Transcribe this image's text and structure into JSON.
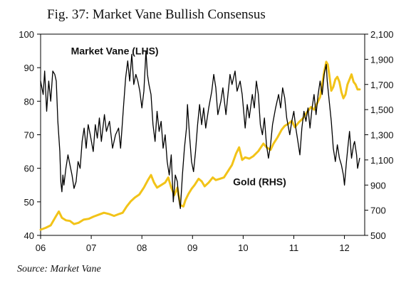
{
  "figure": {
    "title": "Fig. 37: Market Vane Bullish Consensus",
    "source": "Source: Market Vane"
  },
  "chart_data": {
    "type": "line",
    "x_tick_labels": [
      "06",
      "07",
      "08",
      "09",
      "10",
      "11",
      "12"
    ],
    "x_tick_values": [
      2006,
      2007,
      2008,
      2009,
      2010,
      2011,
      2012
    ],
    "xlim": [
      2006,
      2012.4
    ],
    "y_left": {
      "lim": [
        40,
        100
      ],
      "ticks": [
        40,
        50,
        60,
        70,
        80,
        90,
        100
      ]
    },
    "y_right": {
      "lim": [
        500,
        2100
      ],
      "ticks": [
        500,
        700,
        900,
        1100,
        1300,
        1500,
        1700,
        1900,
        2100
      ],
      "tick_labels": [
        "500",
        "700",
        "900",
        "1,100",
        "1,300",
        "1,500",
        "1,700",
        "1,900",
        "2,100"
      ]
    },
    "grid": false,
    "series": [
      {
        "name": "Market Vane (LHS)",
        "axis": "left",
        "color": "#000000",
        "points": [
          [
            2006.0,
            86
          ],
          [
            2006.05,
            82
          ],
          [
            2006.08,
            89
          ],
          [
            2006.12,
            77
          ],
          [
            2006.16,
            86
          ],
          [
            2006.2,
            80
          ],
          [
            2006.24,
            89
          ],
          [
            2006.28,
            88
          ],
          [
            2006.31,
            86
          ],
          [
            2006.34,
            74
          ],
          [
            2006.38,
            65
          ],
          [
            2006.4,
            56
          ],
          [
            2006.42,
            53
          ],
          [
            2006.44,
            58
          ],
          [
            2006.46,
            55
          ],
          [
            2006.5,
            60
          ],
          [
            2006.54,
            64
          ],
          [
            2006.58,
            61
          ],
          [
            2006.62,
            58
          ],
          [
            2006.66,
            54
          ],
          [
            2006.7,
            56
          ],
          [
            2006.74,
            62
          ],
          [
            2006.78,
            60
          ],
          [
            2006.82,
            68
          ],
          [
            2006.86,
            72
          ],
          [
            2006.9,
            66
          ],
          [
            2006.94,
            73
          ],
          [
            2006.98,
            70
          ],
          [
            2007.04,
            65
          ],
          [
            2007.08,
            73
          ],
          [
            2007.12,
            69
          ],
          [
            2007.16,
            75
          ],
          [
            2007.2,
            68
          ],
          [
            2007.26,
            76
          ],
          [
            2007.3,
            71
          ],
          [
            2007.36,
            74
          ],
          [
            2007.42,
            66
          ],
          [
            2007.48,
            70
          ],
          [
            2007.54,
            72
          ],
          [
            2007.58,
            66
          ],
          [
            2007.64,
            79
          ],
          [
            2007.68,
            87
          ],
          [
            2007.72,
            92
          ],
          [
            2007.76,
            86
          ],
          [
            2007.8,
            94
          ],
          [
            2007.84,
            85
          ],
          [
            2007.88,
            88
          ],
          [
            2007.92,
            86
          ],
          [
            2007.96,
            83
          ],
          [
            2008.0,
            78
          ],
          [
            2008.04,
            83
          ],
          [
            2008.08,
            95
          ],
          [
            2008.11,
            88
          ],
          [
            2008.14,
            85
          ],
          [
            2008.18,
            82
          ],
          [
            2008.22,
            73
          ],
          [
            2008.26,
            68
          ],
          [
            2008.3,
            77
          ],
          [
            2008.34,
            71
          ],
          [
            2008.38,
            74
          ],
          [
            2008.42,
            66
          ],
          [
            2008.46,
            70
          ],
          [
            2008.5,
            62
          ],
          [
            2008.54,
            58
          ],
          [
            2008.58,
            64
          ],
          [
            2008.62,
            50
          ],
          [
            2008.66,
            58
          ],
          [
            2008.7,
            56
          ],
          [
            2008.72,
            52
          ],
          [
            2008.76,
            48
          ],
          [
            2008.8,
            58
          ],
          [
            2008.84,
            66
          ],
          [
            2008.88,
            72
          ],
          [
            2008.9,
            79
          ],
          [
            2008.94,
            70
          ],
          [
            2008.98,
            62
          ],
          [
            2009.02,
            59
          ],
          [
            2009.06,
            65
          ],
          [
            2009.1,
            73
          ],
          [
            2009.14,
            79
          ],
          [
            2009.18,
            73
          ],
          [
            2009.22,
            78
          ],
          [
            2009.26,
            72
          ],
          [
            2009.32,
            78
          ],
          [
            2009.38,
            83
          ],
          [
            2009.42,
            88
          ],
          [
            2009.46,
            84
          ],
          [
            2009.5,
            76
          ],
          [
            2009.56,
            80
          ],
          [
            2009.6,
            84
          ],
          [
            2009.66,
            76
          ],
          [
            2009.7,
            82
          ],
          [
            2009.74,
            88
          ],
          [
            2009.78,
            85
          ],
          [
            2009.84,
            89
          ],
          [
            2009.88,
            83
          ],
          [
            2009.94,
            86
          ],
          [
            2009.98,
            82
          ],
          [
            2010.04,
            72
          ],
          [
            2010.08,
            79
          ],
          [
            2010.12,
            75
          ],
          [
            2010.18,
            82
          ],
          [
            2010.22,
            78
          ],
          [
            2010.26,
            86
          ],
          [
            2010.3,
            82
          ],
          [
            2010.34,
            73
          ],
          [
            2010.38,
            70
          ],
          [
            2010.42,
            75
          ],
          [
            2010.46,
            67
          ],
          [
            2010.5,
            63
          ],
          [
            2010.54,
            67
          ],
          [
            2010.58,
            73
          ],
          [
            2010.64,
            78
          ],
          [
            2010.7,
            82
          ],
          [
            2010.74,
            78
          ],
          [
            2010.78,
            84
          ],
          [
            2010.82,
            81
          ],
          [
            2010.86,
            75
          ],
          [
            2010.92,
            70
          ],
          [
            2010.96,
            74
          ],
          [
            2011.0,
            77
          ],
          [
            2011.04,
            72
          ],
          [
            2011.08,
            68
          ],
          [
            2011.12,
            64
          ],
          [
            2011.16,
            72
          ],
          [
            2011.2,
            77
          ],
          [
            2011.24,
            74
          ],
          [
            2011.28,
            78
          ],
          [
            2011.32,
            72
          ],
          [
            2011.36,
            78
          ],
          [
            2011.4,
            82
          ],
          [
            2011.44,
            76
          ],
          [
            2011.48,
            82
          ],
          [
            2011.52,
            86
          ],
          [
            2011.56,
            82
          ],
          [
            2011.6,
            88
          ],
          [
            2011.64,
            91
          ],
          [
            2011.66,
            86
          ],
          [
            2011.7,
            80
          ],
          [
            2011.74,
            74
          ],
          [
            2011.78,
            66
          ],
          [
            2011.82,
            62
          ],
          [
            2011.86,
            67
          ],
          [
            2011.9,
            63
          ],
          [
            2011.94,
            61
          ],
          [
            2011.98,
            58
          ],
          [
            2012.0,
            55
          ],
          [
            2012.04,
            62
          ],
          [
            2012.08,
            68
          ],
          [
            2012.1,
            71
          ],
          [
            2012.14,
            63
          ],
          [
            2012.18,
            67
          ],
          [
            2012.2,
            68
          ],
          [
            2012.24,
            64
          ],
          [
            2012.26,
            60
          ],
          [
            2012.3,
            63
          ]
        ]
      },
      {
        "name": "Gold (RHS)",
        "axis": "right",
        "color": "#f2c318",
        "points": [
          [
            2006.0,
            545
          ],
          [
            2006.1,
            560
          ],
          [
            2006.2,
            580
          ],
          [
            2006.3,
            650
          ],
          [
            2006.36,
            690
          ],
          [
            2006.42,
            640
          ],
          [
            2006.5,
            620
          ],
          [
            2006.58,
            615
          ],
          [
            2006.66,
            590
          ],
          [
            2006.75,
            600
          ],
          [
            2006.85,
            625
          ],
          [
            2006.95,
            632
          ],
          [
            2007.05,
            650
          ],
          [
            2007.15,
            665
          ],
          [
            2007.25,
            680
          ],
          [
            2007.35,
            670
          ],
          [
            2007.45,
            655
          ],
          [
            2007.55,
            670
          ],
          [
            2007.62,
            680
          ],
          [
            2007.7,
            730
          ],
          [
            2007.78,
            770
          ],
          [
            2007.86,
            800
          ],
          [
            2007.95,
            825
          ],
          [
            2008.04,
            880
          ],
          [
            2008.12,
            940
          ],
          [
            2008.18,
            980
          ],
          [
            2008.24,
            920
          ],
          [
            2008.3,
            880
          ],
          [
            2008.38,
            900
          ],
          [
            2008.46,
            920
          ],
          [
            2008.52,
            960
          ],
          [
            2008.58,
            880
          ],
          [
            2008.64,
            820
          ],
          [
            2008.7,
            880
          ],
          [
            2008.76,
            740
          ],
          [
            2008.82,
            730
          ],
          [
            2008.86,
            780
          ],
          [
            2008.92,
            830
          ],
          [
            2008.98,
            870
          ],
          [
            2009.04,
            900
          ],
          [
            2009.12,
            950
          ],
          [
            2009.18,
            930
          ],
          [
            2009.24,
            890
          ],
          [
            2009.32,
            920
          ],
          [
            2009.4,
            960
          ],
          [
            2009.46,
            940
          ],
          [
            2009.54,
            950
          ],
          [
            2009.62,
            960
          ],
          [
            2009.7,
            1010
          ],
          [
            2009.78,
            1060
          ],
          [
            2009.86,
            1150
          ],
          [
            2009.92,
            1200
          ],
          [
            2009.98,
            1100
          ],
          [
            2010.04,
            1120
          ],
          [
            2010.12,
            1110
          ],
          [
            2010.2,
            1130
          ],
          [
            2010.3,
            1170
          ],
          [
            2010.4,
            1230
          ],
          [
            2010.46,
            1200
          ],
          [
            2010.54,
            1180
          ],
          [
            2010.6,
            1230
          ],
          [
            2010.68,
            1280
          ],
          [
            2010.76,
            1340
          ],
          [
            2010.82,
            1370
          ],
          [
            2010.9,
            1390
          ],
          [
            2010.96,
            1410
          ],
          [
            2011.02,
            1360
          ],
          [
            2011.1,
            1400
          ],
          [
            2011.18,
            1430
          ],
          [
            2011.26,
            1480
          ],
          [
            2011.34,
            1520
          ],
          [
            2011.4,
            1500
          ],
          [
            2011.46,
            1550
          ],
          [
            2011.52,
            1600
          ],
          [
            2011.56,
            1700
          ],
          [
            2011.6,
            1800
          ],
          [
            2011.64,
            1880
          ],
          [
            2011.67,
            1860
          ],
          [
            2011.7,
            1780
          ],
          [
            2011.74,
            1650
          ],
          [
            2011.78,
            1680
          ],
          [
            2011.82,
            1740
          ],
          [
            2011.86,
            1760
          ],
          [
            2011.9,
            1720
          ],
          [
            2011.94,
            1640
          ],
          [
            2011.98,
            1590
          ],
          [
            2012.02,
            1620
          ],
          [
            2012.06,
            1700
          ],
          [
            2012.1,
            1740
          ],
          [
            2012.14,
            1780
          ],
          [
            2012.18,
            1720
          ],
          [
            2012.22,
            1700
          ],
          [
            2012.26,
            1660
          ],
          [
            2012.3,
            1660
          ]
        ]
      }
    ],
    "annotations": [
      {
        "text": "Market Vane (LHS)",
        "series": 0,
        "data_x": 2006.6,
        "data_y": 94
      },
      {
        "text": "Gold (RHS)",
        "series": 1,
        "data_x": 2009.8,
        "data_y": 900
      }
    ]
  }
}
